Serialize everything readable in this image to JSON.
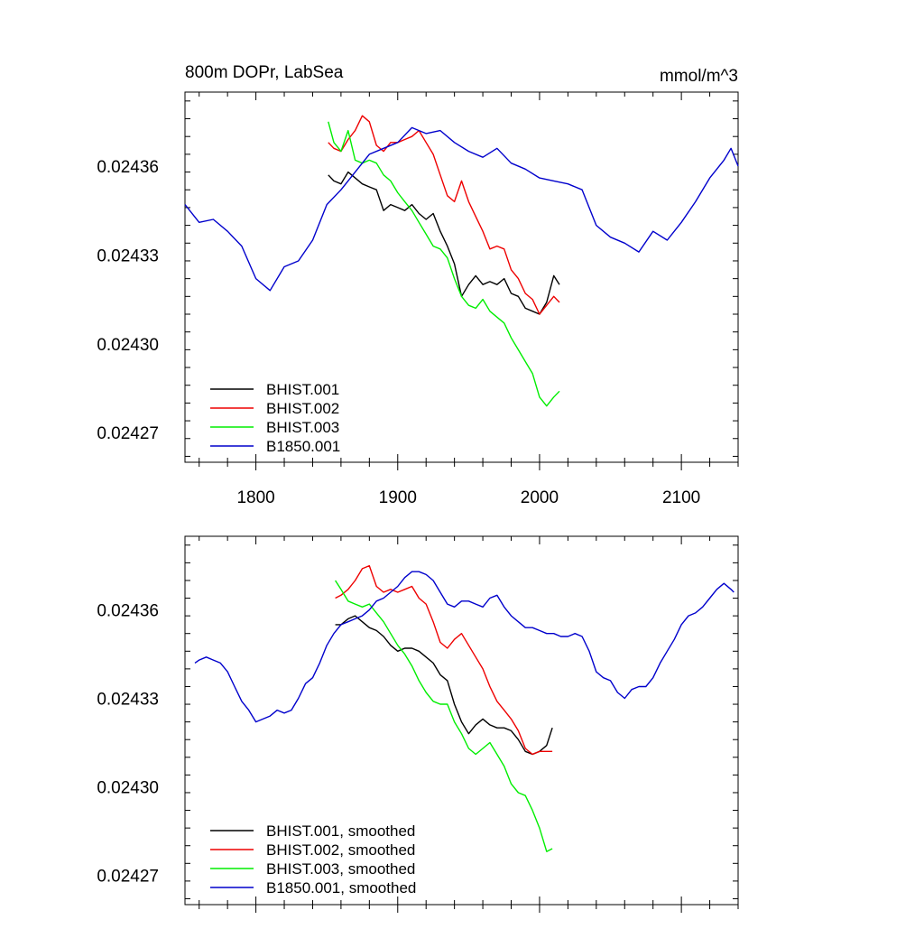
{
  "chart_data": [
    {
      "type": "line",
      "title": "800m DOPr, LabSea",
      "units": "mmol/m^3",
      "xlabel": "",
      "ylabel": "",
      "xlim": [
        1750,
        2140
      ],
      "ylim": [
        0.02426,
        0.024385
      ],
      "xticks": [
        1800,
        1900,
        2000,
        2100
      ],
      "xtick_labels": [
        "1800",
        "1900",
        "2000",
        "2100"
      ],
      "yticks": [
        0.02427,
        0.0243,
        0.02433,
        0.02436
      ],
      "ytick_labels": [
        "0.02427",
        "0.02430",
        "0.02433",
        "0.02436"
      ],
      "grid": false,
      "legend_position": "bottom-left",
      "series": [
        {
          "name": "BHIST.001",
          "color": "#000000",
          "x": [
            1851,
            1855,
            1860,
            1865,
            1870,
            1875,
            1880,
            1885,
            1890,
            1895,
            1900,
            1905,
            1910,
            1915,
            1920,
            1925,
            1930,
            1935,
            1940,
            1945,
            1950,
            1955,
            1960,
            1965,
            1970,
            1975,
            1980,
            1985,
            1990,
            1995,
            2000,
            2005,
            2010,
            2014
          ],
          "y": [
            0.024357,
            0.024355,
            0.024354,
            0.024358,
            0.024356,
            0.024354,
            0.024353,
            0.024352,
            0.024345,
            0.024347,
            0.024346,
            0.024345,
            0.024347,
            0.024344,
            0.024342,
            0.024344,
            0.024338,
            0.024333,
            0.024327,
            0.024316,
            0.02432,
            0.024323,
            0.02432,
            0.024321,
            0.02432,
            0.024322,
            0.024317,
            0.024316,
            0.024312,
            0.024311,
            0.02431,
            0.024314,
            0.024323,
            0.02432
          ]
        },
        {
          "name": "BHIST.002",
          "color": "#ee0000",
          "x": [
            1851,
            1855,
            1860,
            1865,
            1870,
            1875,
            1880,
            1885,
            1890,
            1895,
            1900,
            1905,
            1910,
            1915,
            1920,
            1925,
            1930,
            1935,
            1940,
            1945,
            1950,
            1955,
            1960,
            1965,
            1970,
            1975,
            1980,
            1985,
            1990,
            1995,
            2000,
            2005,
            2010,
            2014
          ],
          "y": [
            0.024368,
            0.024366,
            0.024365,
            0.024369,
            0.024372,
            0.024377,
            0.024375,
            0.024367,
            0.024365,
            0.024368,
            0.024368,
            0.024369,
            0.02437,
            0.024372,
            0.024368,
            0.024364,
            0.024357,
            0.02435,
            0.024348,
            0.024355,
            0.024348,
            0.024343,
            0.024338,
            0.024332,
            0.024333,
            0.024332,
            0.024325,
            0.024322,
            0.024317,
            0.024315,
            0.02431,
            0.024313,
            0.024316,
            0.024314
          ]
        },
        {
          "name": "BHIST.003",
          "color": "#00ee00",
          "x": [
            1851,
            1855,
            1860,
            1865,
            1870,
            1875,
            1880,
            1885,
            1890,
            1895,
            1900,
            1905,
            1910,
            1915,
            1920,
            1925,
            1930,
            1935,
            1940,
            1945,
            1950,
            1955,
            1960,
            1965,
            1970,
            1975,
            1980,
            1985,
            1990,
            1995,
            2000,
            2005,
            2010,
            2014
          ],
          "y": [
            0.024375,
            0.024368,
            0.024365,
            0.024372,
            0.024362,
            0.024361,
            0.024362,
            0.024361,
            0.024357,
            0.024355,
            0.024351,
            0.024348,
            0.024345,
            0.024341,
            0.024337,
            0.024333,
            0.024332,
            0.024329,
            0.024322,
            0.024316,
            0.024313,
            0.024312,
            0.024315,
            0.024311,
            0.024309,
            0.024307,
            0.024302,
            0.024298,
            0.024294,
            0.02429,
            0.024282,
            0.024279,
            0.024282,
            0.024284
          ]
        },
        {
          "name": "B1850.001",
          "color": "#0000cc",
          "x": [
            1750,
            1760,
            1770,
            1780,
            1790,
            1800,
            1810,
            1820,
            1830,
            1840,
            1850,
            1860,
            1870,
            1880,
            1890,
            1900,
            1910,
            1920,
            1930,
            1940,
            1950,
            1960,
            1970,
            1980,
            1990,
            2000,
            2010,
            2020,
            2030,
            2040,
            2050,
            2060,
            2070,
            2080,
            2090,
            2100,
            2110,
            2120,
            2130,
            2135,
            2140
          ],
          "y": [
            0.024347,
            0.024341,
            0.024342,
            0.024338,
            0.024333,
            0.024322,
            0.024318,
            0.024326,
            0.024328,
            0.024335,
            0.024347,
            0.024352,
            0.024358,
            0.024364,
            0.024366,
            0.024368,
            0.024373,
            0.024371,
            0.024372,
            0.024368,
            0.024365,
            0.024363,
            0.024366,
            0.024361,
            0.024359,
            0.024356,
            0.024355,
            0.024354,
            0.024352,
            0.02434,
            0.024336,
            0.024334,
            0.024331,
            0.024338,
            0.024335,
            0.024341,
            0.024348,
            0.024356,
            0.024362,
            0.024366,
            0.02436
          ]
        }
      ]
    },
    {
      "type": "line",
      "title": "",
      "xlabel": "",
      "ylabel": "",
      "xlim": [
        1750,
        2140
      ],
      "ylim": [
        0.02426,
        0.024385
      ],
      "xticks": [
        1800,
        1900,
        2000,
        2100
      ],
      "xtick_labels": [],
      "yticks": [
        0.02427,
        0.0243,
        0.02433,
        0.02436
      ],
      "ytick_labels": [
        "0.02427",
        "0.02430",
        "0.02433",
        "0.02436"
      ],
      "grid": false,
      "legend_position": "bottom-left",
      "series": [
        {
          "name": "BHIST.001, smoothed",
          "color": "#000000",
          "x": [
            1856,
            1860,
            1865,
            1870,
            1875,
            1880,
            1885,
            1890,
            1895,
            1900,
            1905,
            1910,
            1915,
            1920,
            1925,
            1930,
            1935,
            1940,
            1945,
            1950,
            1955,
            1960,
            1965,
            1970,
            1975,
            1980,
            1985,
            1990,
            1995,
            2000,
            2005,
            2009
          ],
          "y": [
            0.024355,
            0.024355,
            0.024357,
            0.024358,
            0.024356,
            0.024354,
            0.024353,
            0.024351,
            0.024348,
            0.024346,
            0.024347,
            0.024347,
            0.024346,
            0.024344,
            0.024342,
            0.024338,
            0.024336,
            0.024328,
            0.024322,
            0.024318,
            0.024321,
            0.024323,
            0.024321,
            0.02432,
            0.02432,
            0.024319,
            0.024316,
            0.024312,
            0.024311,
            0.024312,
            0.024314,
            0.02432
          ]
        },
        {
          "name": "BHIST.002, smoothed",
          "color": "#ee0000",
          "x": [
            1856,
            1860,
            1865,
            1870,
            1875,
            1880,
            1885,
            1890,
            1895,
            1900,
            1905,
            1910,
            1915,
            1920,
            1925,
            1930,
            1935,
            1940,
            1945,
            1950,
            1955,
            1960,
            1965,
            1970,
            1975,
            1980,
            1985,
            1990,
            1995,
            2000,
            2005,
            2009
          ],
          "y": [
            0.024364,
            0.024365,
            0.024367,
            0.02437,
            0.024374,
            0.024375,
            0.024368,
            0.024366,
            0.024367,
            0.024366,
            0.024367,
            0.024368,
            0.024364,
            0.024362,
            0.024356,
            0.024349,
            0.024347,
            0.02435,
            0.024352,
            0.024348,
            0.024344,
            0.02434,
            0.024334,
            0.024329,
            0.024326,
            0.024323,
            0.024319,
            0.024313,
            0.024311,
            0.024312,
            0.024312,
            0.024312
          ]
        },
        {
          "name": "BHIST.003, smoothed",
          "color": "#00ee00",
          "x": [
            1856,
            1860,
            1865,
            1870,
            1875,
            1880,
            1885,
            1890,
            1895,
            1900,
            1905,
            1910,
            1915,
            1920,
            1925,
            1930,
            1935,
            1940,
            1945,
            1950,
            1955,
            1960,
            1965,
            1970,
            1975,
            1980,
            1985,
            1990,
            1995,
            2000,
            2005,
            2009
          ],
          "y": [
            0.02437,
            0.024367,
            0.024363,
            0.024362,
            0.024361,
            0.024362,
            0.024359,
            0.024356,
            0.024352,
            0.024348,
            0.024345,
            0.024341,
            0.024336,
            0.024332,
            0.024329,
            0.024328,
            0.024328,
            0.024322,
            0.024318,
            0.024313,
            0.024311,
            0.024313,
            0.024315,
            0.024311,
            0.024307,
            0.024301,
            0.024298,
            0.024297,
            0.024292,
            0.024286,
            0.024278,
            0.024279
          ]
        },
        {
          "name": "B1850.001, smoothed",
          "color": "#0000cc",
          "x": [
            1757,
            1760,
            1765,
            1770,
            1775,
            1780,
            1785,
            1790,
            1795,
            1800,
            1805,
            1810,
            1815,
            1820,
            1825,
            1830,
            1835,
            1840,
            1845,
            1850,
            1855,
            1860,
            1865,
            1870,
            1875,
            1880,
            1885,
            1890,
            1895,
            1900,
            1905,
            1910,
            1915,
            1920,
            1925,
            1930,
            1935,
            1940,
            1945,
            1950,
            1955,
            1960,
            1965,
            1970,
            1975,
            1980,
            1985,
            1990,
            1995,
            2000,
            2005,
            2010,
            2015,
            2020,
            2025,
            2030,
            2035,
            2040,
            2045,
            2050,
            2055,
            2060,
            2065,
            2070,
            2075,
            2080,
            2085,
            2090,
            2095,
            2100,
            2105,
            2110,
            2115,
            2120,
            2125,
            2130,
            2135,
            2137
          ],
          "y": [
            0.024342,
            0.024343,
            0.024344,
            0.024343,
            0.024342,
            0.024339,
            0.024334,
            0.024329,
            0.024326,
            0.024322,
            0.024323,
            0.024324,
            0.024326,
            0.024325,
            0.024326,
            0.02433,
            0.024335,
            0.024337,
            0.024342,
            0.024348,
            0.024352,
            0.024355,
            0.024356,
            0.024357,
            0.024358,
            0.02436,
            0.024363,
            0.024364,
            0.024366,
            0.024368,
            0.024371,
            0.024373,
            0.024373,
            0.024372,
            0.02437,
            0.024366,
            0.024362,
            0.024361,
            0.024363,
            0.024363,
            0.024362,
            0.024361,
            0.024364,
            0.024365,
            0.024361,
            0.024358,
            0.024356,
            0.024354,
            0.024354,
            0.024353,
            0.024352,
            0.024352,
            0.024351,
            0.024351,
            0.024352,
            0.024351,
            0.024346,
            0.024339,
            0.024337,
            0.024336,
            0.024332,
            0.02433,
            0.024333,
            0.024334,
            0.024334,
            0.024337,
            0.024342,
            0.024346,
            0.02435,
            0.024355,
            0.024358,
            0.024359,
            0.024361,
            0.024364,
            0.024367,
            0.024369,
            0.024367,
            0.024366
          ]
        }
      ]
    }
  ]
}
